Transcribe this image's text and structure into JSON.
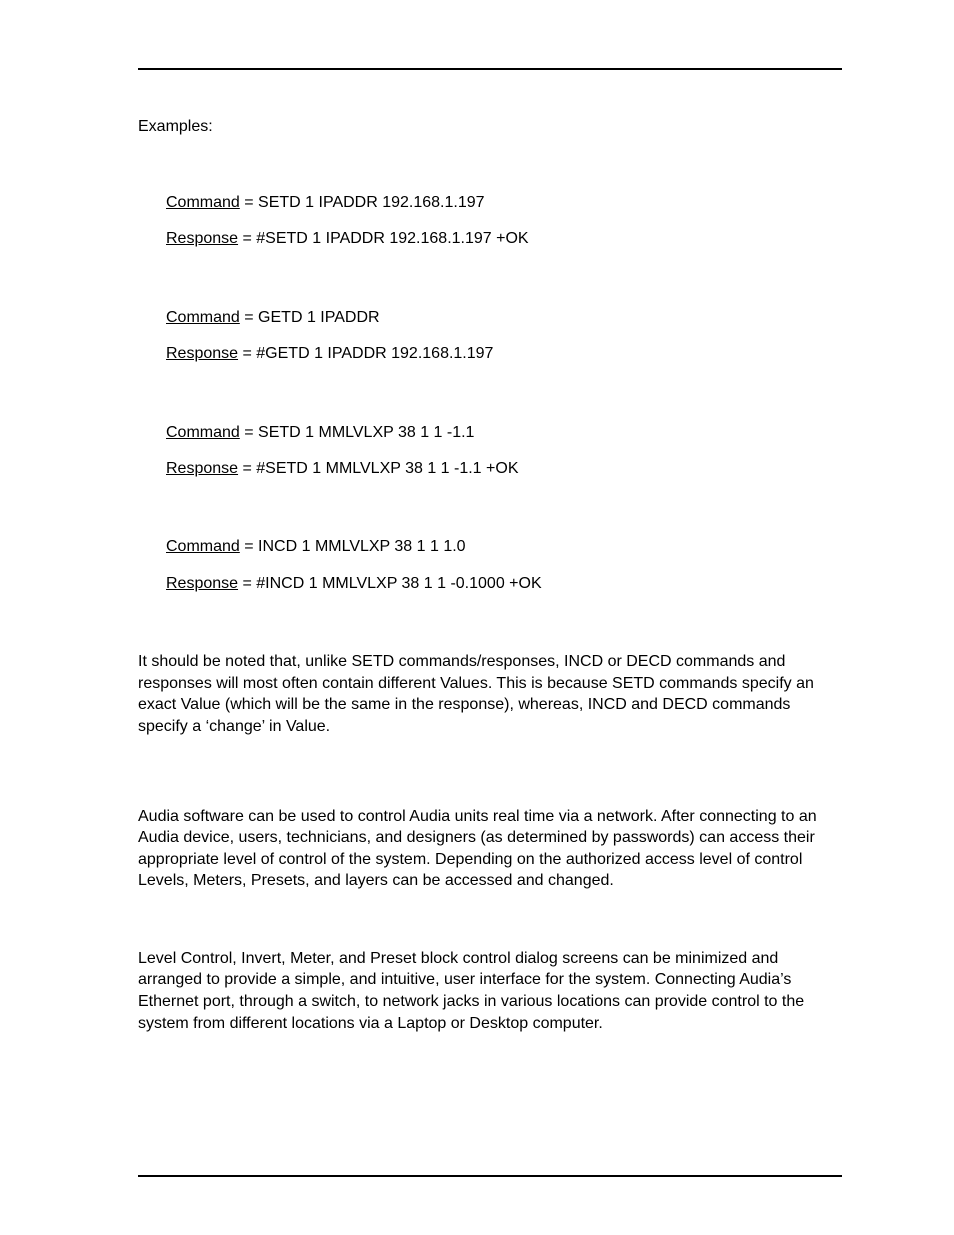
{
  "heading": "Examples:",
  "examples": [
    {
      "command_label": "Command",
      "command_value": " = SETD 1 IPADDR 192.168.1.197",
      "response_label": "Response",
      "response_value": " = #SETD 1 IPADDR 192.168.1.197 +OK"
    },
    {
      "command_label": "Command",
      "command_value": " = GETD 1 IPADDR",
      "response_label": "Response",
      "response_value": " = #GETD 1 IPADDR 192.168.1.197"
    },
    {
      "command_label": "Command",
      "command_value": " = SETD 1 MMLVLXP 38 1 1 -1.1",
      "response_label": "Response",
      "response_value": " = #SETD 1 MMLVLXP 38 1 1 -1.1 +OK"
    },
    {
      "command_label": "Command",
      "command_value": " = INCD 1 MMLVLXP 38 1 1 1.0",
      "response_label": "Response",
      "response_value": " = #INCD 1 MMLVLXP 38 1 1 -0.1000 +OK"
    }
  ],
  "paragraphs": {
    "p1": "It should be noted that, unlike SETD commands/responses, INCD or DECD commands and responses will most often contain different Values. This is because SETD commands specify an exact Value (which will be the same in the response), whereas, INCD and DECD commands specify a ‘change’ in Value.",
    "p2": "Audia software can be used to control Audia units real time via a network. After connecting to an Audia device, users, technicians, and designers (as determined by passwords) can access their appropriate level of control of the system. Depending on the authorized access level of control Levels, Meters, Presets, and layers can be accessed and changed.",
    "p3": "Level Control, Invert, Meter, and Preset block control dialog screens can be minimized and arranged to provide a simple, and intuitive, user interface for the system. Connecting Audia’s Ethernet port, through a switch, to network jacks in various locations can provide control to the system from different locations via a Laptop or Desktop computer."
  },
  "colors": {
    "text": "#000000",
    "background": "#ffffff",
    "rule": "#000000"
  },
  "typography": {
    "font_family": "Arial",
    "body_size_pt": 12
  }
}
